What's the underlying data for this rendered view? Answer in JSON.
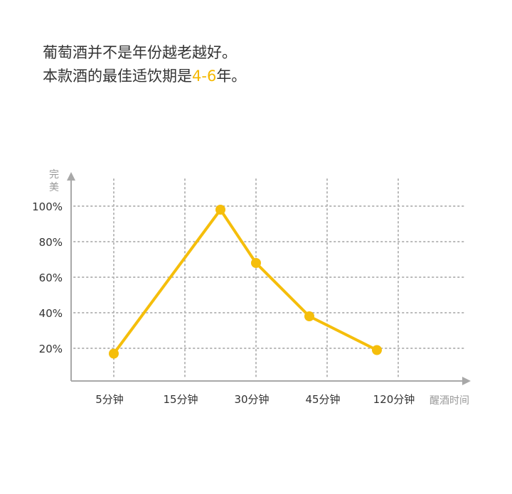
{
  "intro": {
    "line1": "葡萄酒并不是年份越老越好。",
    "line2_prefix": "本款酒的最佳适饮期是",
    "line2_highlight": "4-6",
    "line2_suffix": "年。"
  },
  "colors": {
    "accent": "#f5be0b",
    "grid": "#b8b8b8",
    "axis": "#a8a8a8"
  },
  "chart_data": {
    "type": "line",
    "ylabel": "完美",
    "xlabel": "醒酒时间",
    "categories": [
      "5分钟",
      "15分钟",
      "30分钟",
      "45分钟",
      "120分钟"
    ],
    "y_tick_labels": [
      "100%",
      "80%",
      "60%",
      "40%",
      "20%"
    ],
    "ylim": [
      0,
      100
    ],
    "grid": true,
    "series": [
      {
        "points": [
          {
            "x": 0.0,
            "y": 17
          },
          {
            "x": 1.5,
            "y": 98
          },
          {
            "x": 2.0,
            "y": 68
          },
          {
            "x": 2.75,
            "y": 38
          },
          {
            "x": 3.7,
            "y": 19
          }
        ]
      }
    ]
  }
}
